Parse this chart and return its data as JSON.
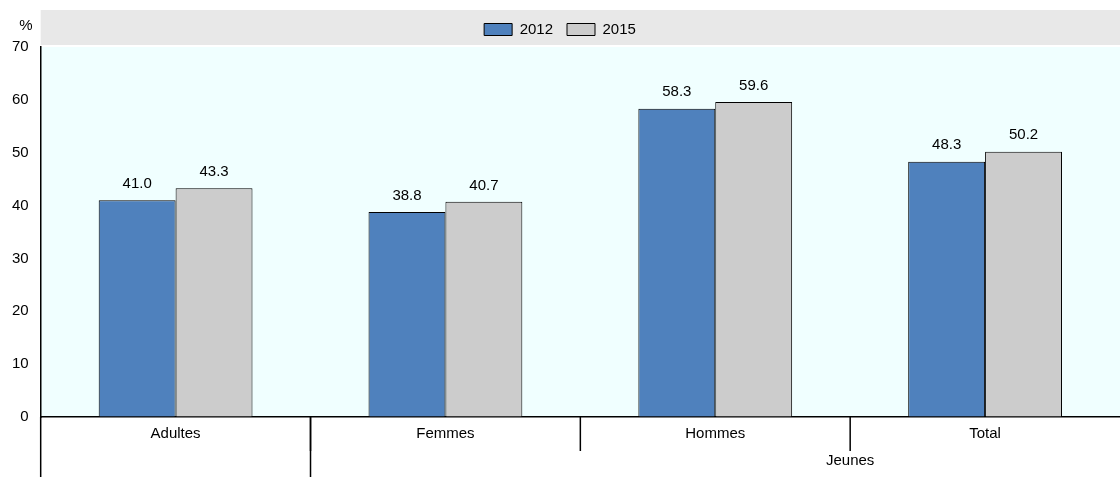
{
  "chart_data": {
    "type": "bar",
    "ylabel": "%",
    "categories": [
      "Adultes",
      "Femmes",
      "Hommes",
      "Total"
    ],
    "series": [
      {
        "name": "2012",
        "color": "#4f81bd",
        "values": [
          41.0,
          38.8,
          58.3,
          48.3
        ],
        "value_labels": [
          "41.0",
          "38.8",
          "58.3",
          "48.3"
        ]
      },
      {
        "name": "2015",
        "color": "#cccccc",
        "values": [
          43.3,
          40.7,
          59.6,
          50.2
        ],
        "value_labels": [
          "43.3",
          "40.7",
          "59.6",
          "50.2"
        ]
      }
    ],
    "ylim": [
      0,
      70
    ],
    "yticks": [
      0,
      10,
      20,
      30,
      40,
      50,
      60,
      70
    ],
    "grid": false,
    "legend": "top",
    "annotations": [
      "Jeunes"
    ]
  }
}
